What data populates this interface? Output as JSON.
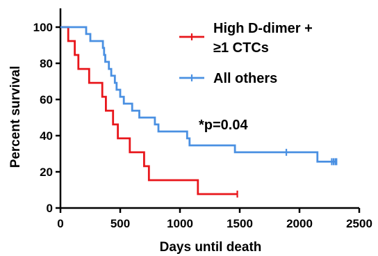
{
  "chart_data": {
    "type": "line",
    "subtype": "kaplan-meier",
    "xlabel": "Days until death",
    "ylabel": "Percent survival",
    "xlim": [
      0,
      2500
    ],
    "ylim": [
      0,
      100
    ],
    "xticks": [
      0,
      500,
      1000,
      1500,
      2000,
      2500
    ],
    "yticks": [
      0,
      20,
      40,
      60,
      80,
      100
    ],
    "grid": false,
    "legend_position": "top-right",
    "annotation": "*p=0.04",
    "series": [
      {
        "name": "High D-dimer +\n≥1 CTCs",
        "legend_lines": [
          "High D-dimer +",
          "≥1 CTCs"
        ],
        "color": "#e8161b",
        "steps": [
          [
            0,
            100
          ],
          [
            65,
            100
          ],
          [
            65,
            92.3
          ],
          [
            120,
            92.3
          ],
          [
            120,
            84.6
          ],
          [
            150,
            84.6
          ],
          [
            150,
            76.9
          ],
          [
            240,
            76.9
          ],
          [
            240,
            69.2
          ],
          [
            350,
            69.2
          ],
          [
            350,
            61.5
          ],
          [
            380,
            61.5
          ],
          [
            380,
            53.8
          ],
          [
            440,
            53.8
          ],
          [
            440,
            46.2
          ],
          [
            480,
            46.2
          ],
          [
            480,
            38.5
          ],
          [
            580,
            38.5
          ],
          [
            580,
            30.8
          ],
          [
            700,
            30.8
          ],
          [
            700,
            23.1
          ],
          [
            740,
            23.1
          ],
          [
            740,
            15.4
          ],
          [
            1150,
            15.4
          ],
          [
            1150,
            7.7
          ],
          [
            1480,
            7.7
          ]
        ],
        "censored": [
          [
            1480,
            7.7
          ]
        ]
      },
      {
        "name": "All others",
        "legend_lines": [
          "All others"
        ],
        "color": "#4a90e2",
        "steps": [
          [
            0,
            100
          ],
          [
            215,
            100
          ],
          [
            215,
            96.2
          ],
          [
            250,
            96.2
          ],
          [
            250,
            92.3
          ],
          [
            355,
            92.3
          ],
          [
            355,
            88.5
          ],
          [
            365,
            88.5
          ],
          [
            365,
            84.6
          ],
          [
            375,
            84.6
          ],
          [
            375,
            80.8
          ],
          [
            405,
            80.8
          ],
          [
            405,
            76.9
          ],
          [
            425,
            76.9
          ],
          [
            425,
            73.1
          ],
          [
            455,
            73.1
          ],
          [
            455,
            69.2
          ],
          [
            470,
            69.2
          ],
          [
            470,
            65.4
          ],
          [
            500,
            65.4
          ],
          [
            500,
            61.5
          ],
          [
            530,
            61.5
          ],
          [
            530,
            57.7
          ],
          [
            600,
            57.7
          ],
          [
            600,
            53.8
          ],
          [
            660,
            53.8
          ],
          [
            660,
            50.0
          ],
          [
            790,
            50.0
          ],
          [
            790,
            46.2
          ],
          [
            820,
            46.2
          ],
          [
            820,
            42.3
          ],
          [
            1060,
            42.3
          ],
          [
            1060,
            38.5
          ],
          [
            1080,
            38.5
          ],
          [
            1080,
            34.6
          ],
          [
            1460,
            34.6
          ],
          [
            1460,
            30.8
          ],
          [
            2150,
            30.8
          ],
          [
            2150,
            25.6
          ],
          [
            2310,
            25.6
          ]
        ],
        "censored": [
          [
            1890,
            30.8
          ],
          [
            2270,
            25.6
          ],
          [
            2285,
            25.6
          ],
          [
            2300,
            25.6
          ],
          [
            2310,
            25.6
          ]
        ]
      }
    ]
  }
}
